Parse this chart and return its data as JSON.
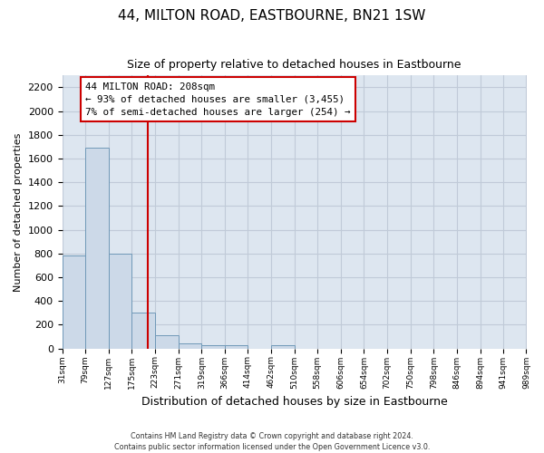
{
  "title": "44, MILTON ROAD, EASTBOURNE, BN21 1SW",
  "subtitle": "Size of property relative to detached houses in Eastbourne",
  "xlabel": "Distribution of detached houses by size in Eastbourne",
  "ylabel": "Number of detached properties",
  "bar_edges": [
    31,
    79,
    127,
    175,
    223,
    271,
    319,
    366,
    414,
    462,
    510,
    558,
    606,
    654,
    702,
    750,
    798,
    846,
    894,
    941,
    989
  ],
  "bar_heights": [
    780,
    1690,
    800,
    300,
    110,
    45,
    25,
    25,
    0,
    30,
    0,
    0,
    0,
    0,
    0,
    0,
    0,
    0,
    0,
    0
  ],
  "bar_color": "#ccd9e8",
  "bar_edgecolor": "#7099b8",
  "property_line_x": 208,
  "property_line_color": "#cc0000",
  "annotation_line1": "44 MILTON ROAD: 208sqm",
  "annotation_line2": "← 93% of detached houses are smaller (3,455)",
  "annotation_line3": "7% of semi-detached houses are larger (254) →",
  "annotation_box_facecolor": "#ffffff",
  "annotation_box_edgecolor": "#cc0000",
  "ylim": [
    0,
    2300
  ],
  "yticks": [
    0,
    200,
    400,
    600,
    800,
    1000,
    1200,
    1400,
    1600,
    1800,
    2000,
    2200
  ],
  "tick_labels": [
    "31sqm",
    "79sqm",
    "127sqm",
    "175sqm",
    "223sqm",
    "271sqm",
    "319sqm",
    "366sqm",
    "414sqm",
    "462sqm",
    "510sqm",
    "558sqm",
    "606sqm",
    "654sqm",
    "702sqm",
    "750sqm",
    "798sqm",
    "846sqm",
    "894sqm",
    "941sqm",
    "989sqm"
  ],
  "footer_line1": "Contains HM Land Registry data © Crown copyright and database right 2024.",
  "footer_line2": "Contains public sector information licensed under the Open Government Licence v3.0.",
  "grid_color": "#c0cad8",
  "background_color": "#dde6f0",
  "title_fontsize": 11,
  "subtitle_fontsize": 9,
  "ylabel_fontsize": 8,
  "xlabel_fontsize": 9
}
